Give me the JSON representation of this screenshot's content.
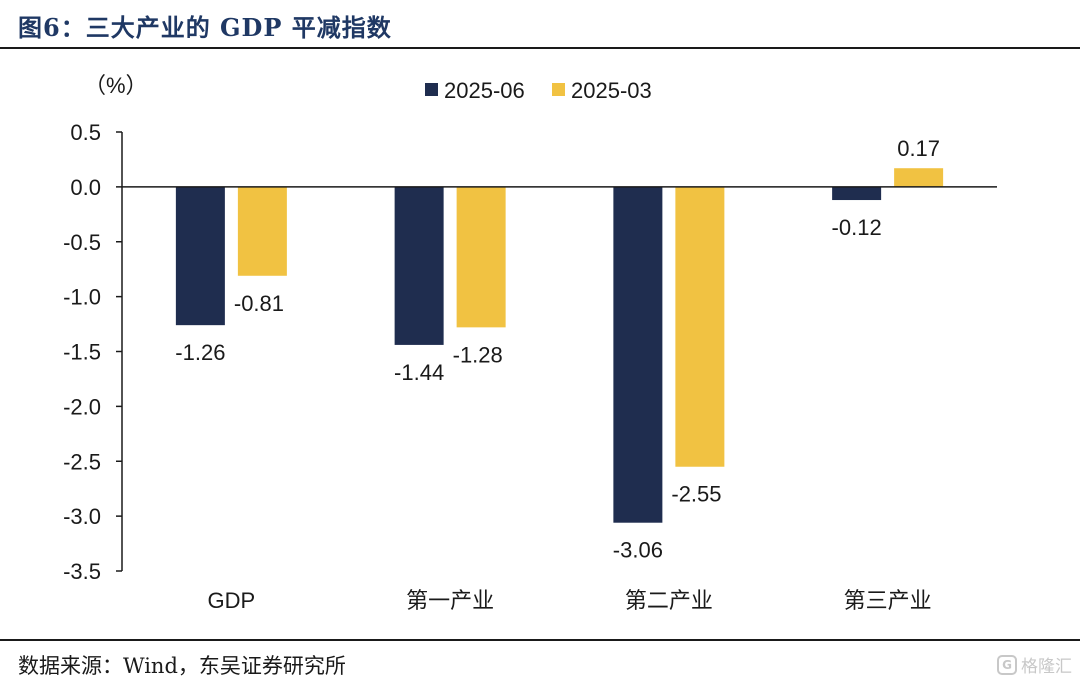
{
  "figure_title": "图6：三大产业的 GDP 平减指数",
  "source": "数据来源：Wind，东吴证券研究所",
  "watermark": {
    "logo_text": "G",
    "text": "格隆汇"
  },
  "colors": {
    "series1": "#1f2d4f",
    "series2": "#f1c242",
    "axis": "#1a1a1a"
  },
  "chart_data": {
    "type": "bar",
    "title": "三大产业的 GDP 平减指数",
    "ylabel": "（%）",
    "xlabel": "",
    "ylim": [
      -3.5,
      0.5
    ],
    "ytick_step": 0.5,
    "yticks": [
      "0.5",
      "0.0",
      "-0.5",
      "-1.0",
      "-1.5",
      "-2.0",
      "-2.5",
      "-3.0",
      "-3.5"
    ],
    "categories": [
      "GDP",
      "第一产业",
      "第二产业",
      "第三产业"
    ],
    "series": [
      {
        "name": "2025-06",
        "values": [
          -1.26,
          -1.44,
          -3.06,
          -0.12
        ],
        "labels": [
          "-1.26",
          "-1.44",
          "-3.06",
          "-0.12"
        ]
      },
      {
        "name": "2025-03",
        "values": [
          -0.81,
          -1.28,
          -2.55,
          0.17
        ],
        "labels": [
          "-0.81",
          "-1.28",
          "-2.55",
          "0.17"
        ]
      }
    ],
    "legend": "top-center",
    "grid": false
  }
}
